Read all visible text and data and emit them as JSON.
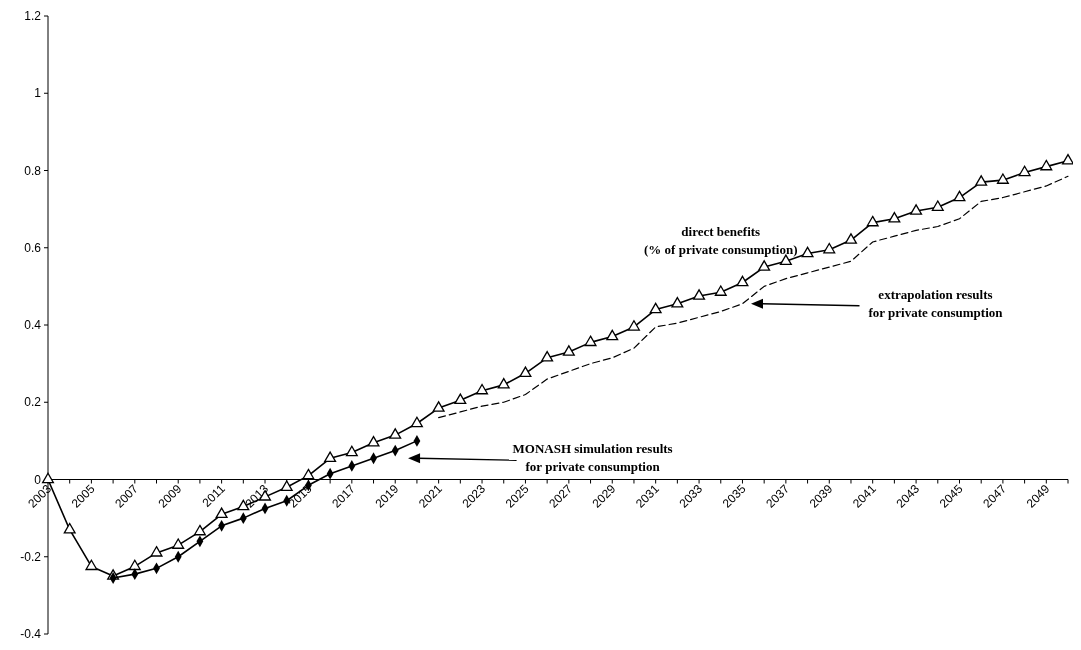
{
  "chart_data": {
    "type": "line",
    "categories": [
      "2003",
      null,
      "2005",
      null,
      "2007",
      null,
      "2009",
      null,
      "2011",
      null,
      "2013",
      null,
      "2015",
      null,
      "2017",
      null,
      "2019",
      null,
      "2021",
      null,
      "2023",
      null,
      "2025",
      null,
      "2027",
      null,
      "2029",
      null,
      "2031",
      null,
      "2033",
      null,
      "2035",
      null,
      "2037",
      null,
      "2039",
      null,
      "2041",
      null,
      "2043",
      null,
      "2045",
      null,
      "2047",
      null,
      "2049",
      null
    ],
    "ylim": [
      -0.4,
      1.2
    ],
    "yticks": [
      -0.4,
      -0.2,
      0,
      0.2,
      0.4,
      0.6,
      0.8,
      1,
      1.2
    ],
    "grid": false,
    "series": [
      {
        "color": "#000000",
        "marker": "triangle",
        "line_style": "solid",
        "values": [
          0,
          -0.13,
          -0.225,
          -0.25,
          -0.225,
          -0.19,
          -0.17,
          -0.135,
          -0.09,
          -0.07,
          -0.045,
          -0.02,
          0.01,
          0.055,
          0.07,
          0.095,
          0.115,
          0.145,
          0.185,
          0.205,
          0.23,
          0.245,
          0.275,
          0.315,
          0.33,
          0.355,
          0.37,
          0.395,
          0.44,
          0.455,
          0.475,
          0.485,
          0.51,
          0.55,
          0.565,
          0.585,
          0.595,
          0.62,
          0.665,
          0.675,
          0.695,
          0.705,
          0.73,
          0.77,
          0.775,
          0.795,
          0.81,
          0.825
        ]
      },
      {
        "color": "#000000",
        "marker": "diamond",
        "line_style": "solid",
        "values": [
          null,
          null,
          null,
          -0.255,
          -0.245,
          -0.23,
          -0.2,
          -0.16,
          -0.12,
          -0.1,
          -0.075,
          -0.055,
          -0.015,
          0.015,
          0.035,
          0.055,
          0.075,
          0.1,
          null,
          null,
          null,
          null,
          null,
          null,
          null,
          null,
          null,
          null,
          null,
          null,
          null,
          null,
          null,
          null,
          null,
          null,
          null,
          null,
          null,
          null,
          null,
          null,
          null,
          null,
          null,
          null,
          null,
          null
        ]
      },
      {
        "color": "#000000",
        "marker": "none",
        "line_style": "dashed",
        "values": [
          null,
          null,
          null,
          null,
          null,
          null,
          null,
          null,
          null,
          null,
          null,
          null,
          null,
          null,
          null,
          null,
          null,
          null,
          0.16,
          0.175,
          0.19,
          0.2,
          0.22,
          0.26,
          0.28,
          0.3,
          0.315,
          0.34,
          0.395,
          0.405,
          0.42,
          0.435,
          0.455,
          0.5,
          0.52,
          0.535,
          0.55,
          0.565,
          0.615,
          0.63,
          0.645,
          0.655,
          0.675,
          0.72,
          0.73,
          0.745,
          0.76,
          0.785
        ]
      }
    ],
    "annotations": [
      "direct benefits\n(% of private consumption)",
      "extrapolation results\nfor private consumption",
      "MONASH simulation results\nfor private consumption"
    ]
  }
}
